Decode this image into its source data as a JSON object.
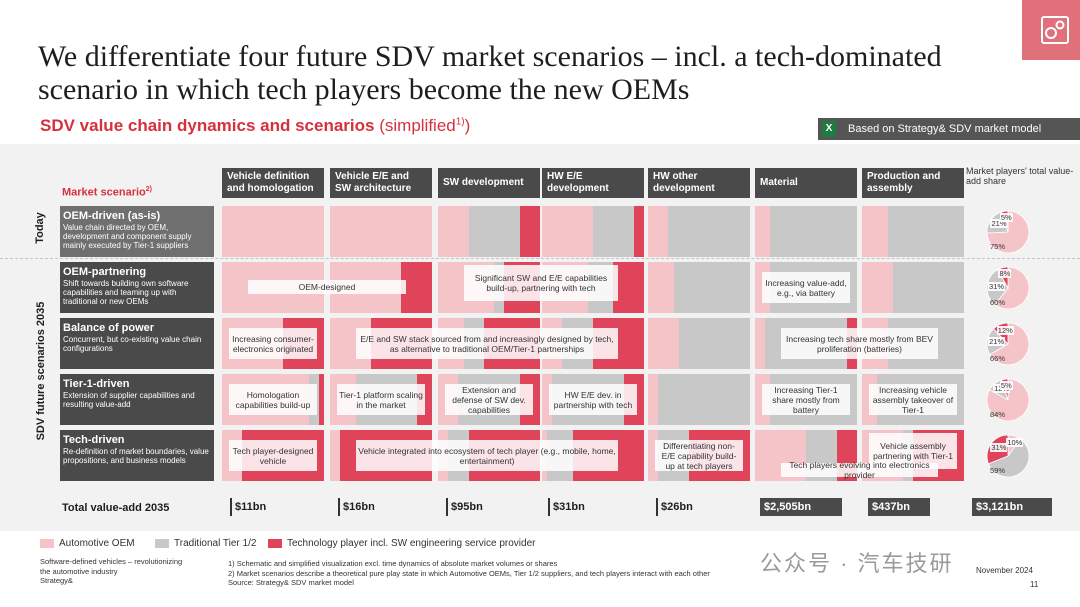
{
  "title": "We differentiate four future SDV market scenarios – incl. a tech-dominated scenario in which tech players become the new OEMs",
  "subtitle": {
    "main": "SDV value chain dynamics and scenarios",
    "simplified": "(simplified",
    "sup": "1)",
    "close": ")"
  },
  "model_badge": {
    "icon": "excel-icon",
    "icon_letter": "X",
    "text": "Based on Strategy& SDV market model"
  },
  "logo": {
    "icon": "gears-icon",
    "color": "#e0707a"
  },
  "market_scenario_label": "Market scenario",
  "market_scenario_sup": "2)",
  "share_header": "Market players' total value-add share",
  "side_labels": {
    "today": "Today",
    "future": "SDV future scenarios 2035"
  },
  "colors": {
    "oem": "#f5c4c8",
    "tier": "#c8c8c8",
    "tech": "#e0445a",
    "dark_box": "#4a4a4a",
    "accent": "#d6303d"
  },
  "chart_data": {
    "type": "bar",
    "categories": [
      "Vehicle definition and homologation",
      "Vehicle E/E and SW architecture",
      "SW development",
      "HW E/E development",
      "HW other development",
      "Material",
      "Production and assembly"
    ],
    "series_names": [
      "Automotive OEM",
      "Traditional Tier 1/2",
      "Technology player incl. SW engineering service provider"
    ],
    "scenarios": [
      {
        "name": "OEM-driven (as-is)",
        "desc": "Value chain directed by OEM, development and component supply mainly executed by Tier-1 suppliers",
        "shares": [
          [
            100,
            0,
            0
          ],
          [
            100,
            0,
            0
          ],
          [
            30,
            50,
            20
          ],
          [
            50,
            40,
            10
          ],
          [
            20,
            80,
            0
          ],
          [
            15,
            85,
            0
          ],
          [
            25,
            75,
            0
          ]
        ],
        "notes": [],
        "pie": {
          "oem": 75,
          "tier": 21,
          "tech": 5
        }
      },
      {
        "name": "OEM-partnering",
        "desc": "Shift towards building own software capabilities and teaming up with traditional or new OEMs",
        "shares": [
          [
            100,
            0,
            0
          ],
          [
            70,
            0,
            30
          ],
          [
            55,
            10,
            35
          ],
          [
            45,
            25,
            30
          ],
          [
            25,
            75,
            0
          ],
          [
            15,
            85,
            0
          ],
          [
            30,
            70,
            0
          ]
        ],
        "notes": [
          {
            "text": "OEM-designed",
            "col": 0,
            "span": 2,
            "pos": "mid"
          },
          {
            "text": "Significant SW and E/E capabilities build-up, partnering with tech",
            "col": 2,
            "span": 2,
            "pos": "top"
          },
          {
            "text": "Increasing value-add, e.g., via battery",
            "col": 5,
            "span": 1,
            "pos": "mid"
          }
        ],
        "pie": {
          "oem": 60,
          "tier": 31,
          "tech": 8
        }
      },
      {
        "name": "Balance of power",
        "desc": "Concurrent, but co-existing value chain configurations",
        "shares": [
          [
            60,
            0,
            40
          ],
          [
            40,
            0,
            60
          ],
          [
            25,
            20,
            55
          ],
          [
            20,
            30,
            50
          ],
          [
            30,
            70,
            0
          ],
          [
            10,
            80,
            10
          ],
          [
            25,
            75,
            0
          ]
        ],
        "notes": [
          {
            "text": "Increasing consumer-electronics originated",
            "col": 0,
            "span": 1,
            "pos": "mid"
          },
          {
            "text": "E/E and SW stack sourced from and increasingly designed by tech, as alternative to traditional OEM/Tier-1 partnerships",
            "col": 1,
            "span": 3,
            "pos": "mid"
          },
          {
            "text": "Increasing tech share mostly from BEV proliferation (batteries)",
            "col": 5,
            "span": 2,
            "pos": "mid"
          }
        ],
        "pie": {
          "oem": 66,
          "tier": 21,
          "tech": 12
        }
      },
      {
        "name": "Tier-1-driven",
        "desc": "Extension of supplier capabilities and resulting value-add",
        "shares": [
          [
            85,
            10,
            5
          ],
          [
            25,
            60,
            15
          ],
          [
            20,
            60,
            20
          ],
          [
            10,
            70,
            20
          ],
          [
            10,
            90,
            0
          ],
          [
            15,
            85,
            0
          ],
          [
            15,
            85,
            0
          ]
        ],
        "notes": [
          {
            "text": "Homologation capabilities build-up",
            "col": 0,
            "span": 1,
            "pos": "mid"
          },
          {
            "text": "Tier-1 platform scaling in the market",
            "col": 1,
            "span": 1,
            "pos": "mid"
          },
          {
            "text": "Extension and defense of SW dev. capabilities",
            "col": 2,
            "span": 1,
            "pos": "mid"
          },
          {
            "text": "HW E/E dev. in partnership with tech",
            "col": 3,
            "span": 1,
            "pos": "mid"
          },
          {
            "text": "Increasing Tier-1 share mostly from battery",
            "col": 5,
            "span": 1,
            "pos": "mid"
          },
          {
            "text": "Increasing vehicle assembly takeover of Tier-1",
            "col": 6,
            "span": 1,
            "pos": "mid"
          }
        ],
        "pie": {
          "oem": 84,
          "tier": 12,
          "tech": 5
        }
      },
      {
        "name": "Tech-driven",
        "desc": "Re-definition of market boundaries, value propositions, and business models",
        "shares": [
          [
            20,
            0,
            80
          ],
          [
            10,
            0,
            90
          ],
          [
            10,
            20,
            70
          ],
          [
            5,
            25,
            70
          ],
          [
            10,
            30,
            60
          ],
          [
            50,
            30,
            20
          ],
          [
            40,
            10,
            50
          ]
        ],
        "notes": [
          {
            "text": "Tech player-designed vehicle",
            "col": 0,
            "span": 1,
            "pos": "mid"
          },
          {
            "text": "Vehicle integrated into ecosystem of tech player (e.g., mobile, home, entertainment)",
            "col": 1,
            "span": 3,
            "pos": "mid"
          },
          {
            "text": "Differentiating non-E/E capability build-up at tech players",
            "col": 4,
            "span": 1,
            "pos": "mid"
          },
          {
            "text": "Vehicle assembly partnering with Tier-1",
            "col": 6,
            "span": 1,
            "pos": "top"
          },
          {
            "text": "Tech players evolving into electronics provider",
            "col": 5,
            "span": 2,
            "pos": "bottom"
          }
        ],
        "pie": {
          "oem": 10,
          "tier": 59,
          "tech": 31
        }
      }
    ]
  },
  "totals_label": "Total value-add 2035",
  "totals": [
    {
      "value": "$11bn",
      "style": "plain"
    },
    {
      "value": "$16bn",
      "style": "plain"
    },
    {
      "value": "$95bn",
      "style": "plain"
    },
    {
      "value": "$31bn",
      "style": "plain"
    },
    {
      "value": "$26bn",
      "style": "plain"
    },
    {
      "value": "$2,505bn",
      "style": "box"
    },
    {
      "value": "$437bn",
      "style": "box"
    },
    {
      "value": "$3,121bn",
      "style": "box"
    }
  ],
  "legend": {
    "oem": "Automotive OEM",
    "tier": "Traditional Tier 1/2",
    "tech": "Technology player incl. SW engineering service provider"
  },
  "footer": {
    "left1": "Software-defined vehicles – revolutionizing",
    "left2": "the automotive industry",
    "left3": "Strategy&",
    "note1": "1) Schematic and simplified visualization excl. time dynamics of absolute market volumes or shares",
    "note2": "2) Market scenarios describe a theoretical pure play state in which Automotive OEMs, Tier 1/2 suppliers, and tech players interact with each other",
    "source": "Source: Strategy& SDV market model",
    "date": "November 2024",
    "page": "11",
    "watermark": "公众号 · 汽车技研"
  }
}
